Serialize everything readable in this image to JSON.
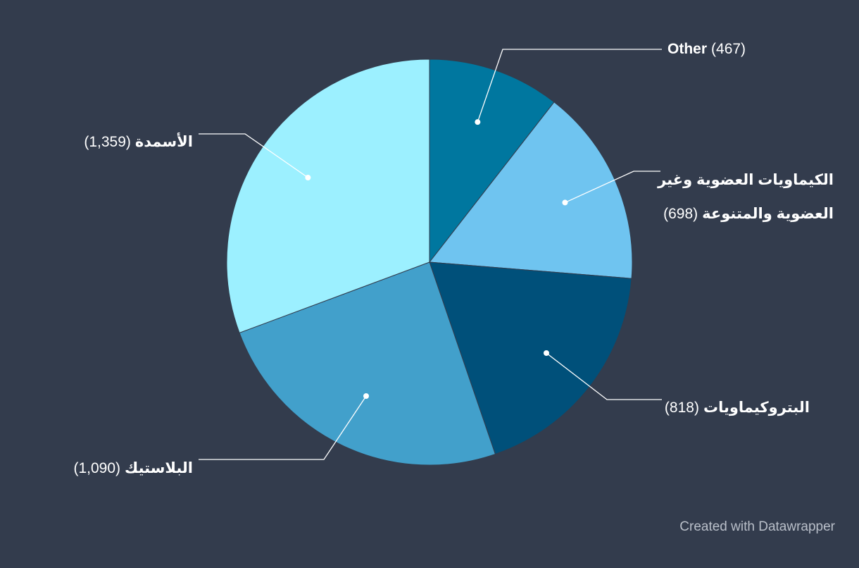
{
  "chart_data": {
    "type": "pie",
    "slices": [
      {
        "name": "Other",
        "value": 467,
        "value_label": "(467)",
        "color": "#00779f"
      },
      {
        "name": "الكيماويات العضوية وغير العضوية والمتنوعة",
        "value": 698,
        "value_label": "(698)",
        "color": "#6fc4f0"
      },
      {
        "name": "البتروكيماويات",
        "value": 818,
        "value_label": "(818)",
        "color": "#00507a"
      },
      {
        "name": "البلاستيك",
        "value": 1090,
        "value_label": "(1,090)",
        "color": "#42a0cb"
      },
      {
        "name": "الأسمدة",
        "value": 1359,
        "value_label": "(1,359)",
        "color": "#9cf0ff"
      }
    ]
  },
  "credit": "Created with Datawrapper",
  "colors": {
    "background": "#333c4d",
    "leader_line": "#ffffff",
    "label_text": "#ffffff",
    "credit_text": "#b9bfc9",
    "slice_border": "#333c4d"
  }
}
